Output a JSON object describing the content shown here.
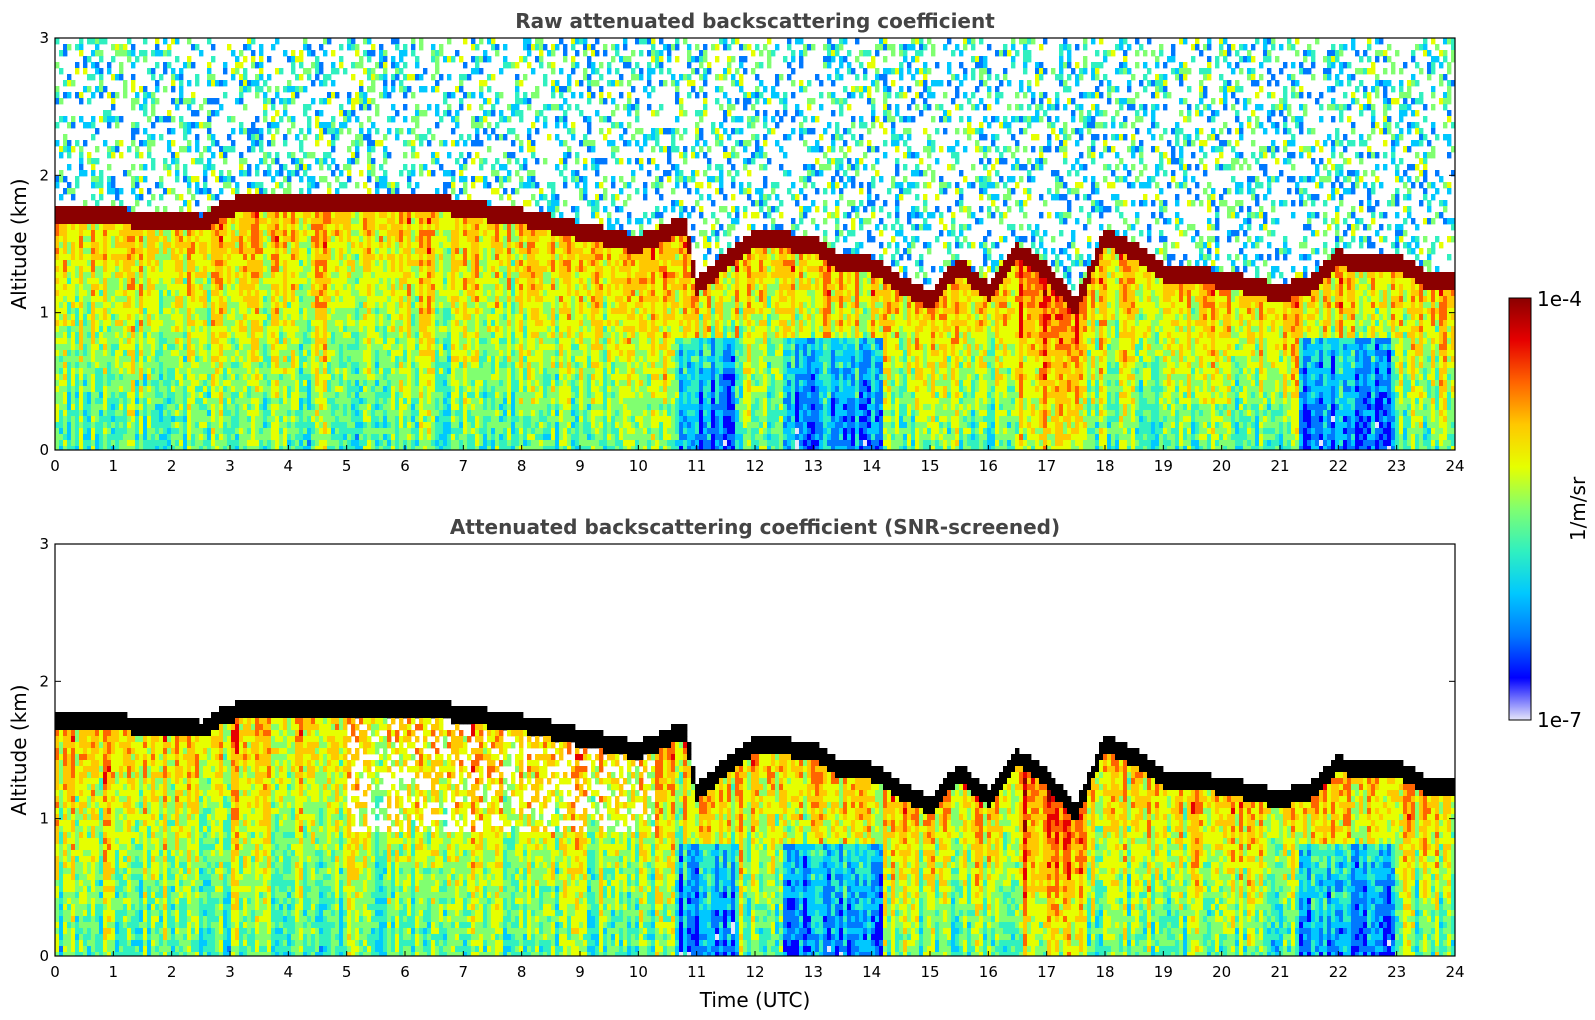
{
  "chart_data": [
    {
      "type": "heatmap",
      "title": "Raw attenuated backscattering coefficient",
      "xlabel": "",
      "ylabel": "Altitude (km)",
      "xlim": [
        0,
        24
      ],
      "ylim": [
        0,
        3
      ],
      "xticks": [
        "0",
        "1",
        "2",
        "3",
        "4",
        "5",
        "6",
        "7",
        "8",
        "9",
        "10",
        "11",
        "12",
        "13",
        "14",
        "15",
        "16",
        "17",
        "18",
        "19",
        "20",
        "21",
        "22",
        "23",
        "24"
      ],
      "yticks": [
        "0",
        "1",
        "2",
        "3"
      ],
      "screened": false,
      "cloud_top_km": {
        "t": [
          0,
          1,
          2,
          2.5,
          3,
          4,
          5,
          6,
          6.8,
          8,
          9,
          10,
          10.8,
          11,
          12,
          13,
          13.5,
          14,
          14.5,
          15,
          15.5,
          16,
          16.5,
          17,
          17.5,
          18,
          18.5,
          19,
          20,
          21,
          21.5,
          22,
          22.5,
          23,
          23.5,
          24
        ],
        "h": [
          1.7,
          1.7,
          1.68,
          1.65,
          1.78,
          1.8,
          1.82,
          1.82,
          1.78,
          1.7,
          1.6,
          1.5,
          1.65,
          1.2,
          1.55,
          1.5,
          1.35,
          1.35,
          1.2,
          1.1,
          1.35,
          1.15,
          1.45,
          1.3,
          1.05,
          1.55,
          1.45,
          1.3,
          1.25,
          1.15,
          1.2,
          1.4,
          1.35,
          1.38,
          1.25,
          1.25
        ]
      }
    },
    {
      "type": "heatmap",
      "title": "Attenuated backscattering coefficient (SNR-screened)",
      "xlabel": "Time (UTC)",
      "ylabel": "Altitude (km)",
      "xlim": [
        0,
        24
      ],
      "ylim": [
        0,
        3
      ],
      "xticks": [
        "0",
        "1",
        "2",
        "3",
        "4",
        "5",
        "6",
        "7",
        "8",
        "9",
        "10",
        "11",
        "12",
        "13",
        "14",
        "15",
        "16",
        "17",
        "18",
        "19",
        "20",
        "21",
        "22",
        "23",
        "24"
      ],
      "yticks": [
        "0",
        "1",
        "2",
        "3"
      ],
      "screened": true,
      "cloud_top_km": {
        "t": [
          0,
          1,
          2,
          2.5,
          3,
          4,
          5,
          6,
          6.8,
          8,
          9,
          10,
          10.8,
          11,
          12,
          13,
          13.5,
          14,
          14.5,
          15,
          15.5,
          16,
          16.5,
          17,
          17.5,
          18,
          18.5,
          19,
          20,
          21,
          21.5,
          22,
          22.5,
          23,
          23.5,
          24
        ],
        "h": [
          1.7,
          1.7,
          1.68,
          1.65,
          1.78,
          1.8,
          1.82,
          1.82,
          1.78,
          1.7,
          1.6,
          1.5,
          1.65,
          1.2,
          1.55,
          1.5,
          1.35,
          1.35,
          1.2,
          1.1,
          1.35,
          1.15,
          1.45,
          1.3,
          1.05,
          1.55,
          1.45,
          1.3,
          1.25,
          1.15,
          1.2,
          1.4,
          1.35,
          1.38,
          1.25,
          1.25
        ]
      }
    }
  ],
  "colorbar": {
    "max_label": "1e-4",
    "min_label": "1e-7",
    "unit_label": "1/m/sr",
    "scale": "log",
    "colormap": [
      "#e6e6fa",
      "#0000ff",
      "#0078ff",
      "#00c8ff",
      "#30f0c0",
      "#80ff70",
      "#e6ff00",
      "#ffc800",
      "#ff6400",
      "#e60000",
      "#8b0000"
    ]
  }
}
